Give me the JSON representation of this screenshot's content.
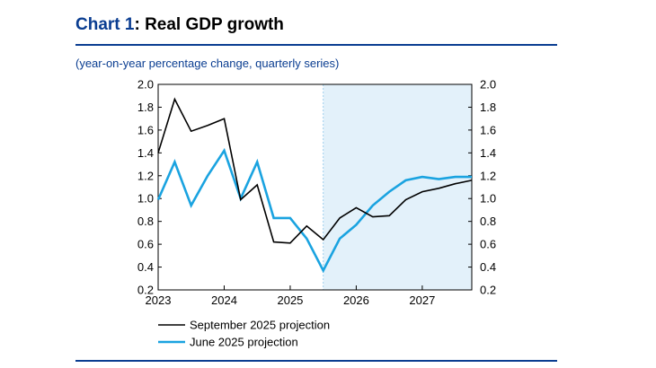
{
  "header": {
    "title_num": "Chart 1",
    "title_text": ": Real GDP growth",
    "subtitle": "(year-on-year percentage change, quarterly series)"
  },
  "colors": {
    "september": "#000000",
    "june": "#1aa3e0",
    "projection_shade": "#e3f1fa",
    "accent": "#0a3d91"
  },
  "chart_data": {
    "type": "line",
    "title": "Real GDP growth",
    "subtitle": "(year-on-year percentage change, quarterly series)",
    "xlabel": "",
    "ylabel": "",
    "x_ticks": [
      "2023",
      "2024",
      "2025",
      "2026",
      "2027"
    ],
    "ylim": [
      0.2,
      2.0
    ],
    "y_ticks": [
      "0.2",
      "0.4",
      "0.6",
      "0.8",
      "1.0",
      "1.2",
      "1.4",
      "1.6",
      "1.8",
      "2.0"
    ],
    "shaded_projection_start": "2025Q3",
    "x": [
      "2023Q1",
      "2023Q2",
      "2023Q3",
      "2023Q4",
      "2024Q1",
      "2024Q2",
      "2024Q3",
      "2024Q4",
      "2025Q1",
      "2025Q2",
      "2025Q3",
      "2025Q4",
      "2026Q1",
      "2026Q2",
      "2026Q3",
      "2026Q4",
      "2027Q1",
      "2027Q2",
      "2027Q3",
      "2027Q4"
    ],
    "series": [
      {
        "name": "September 2025 projection",
        "values": [
          1.4,
          1.87,
          1.59,
          1.64,
          1.7,
          0.99,
          1.12,
          0.62,
          0.61,
          0.76,
          0.64,
          0.83,
          0.92,
          0.84,
          0.85,
          0.99,
          1.06,
          1.09,
          1.13,
          1.16
        ]
      },
      {
        "name": "June 2025 projection",
        "values": [
          0.99,
          1.32,
          0.94,
          1.2,
          1.42,
          1.0,
          1.32,
          0.83,
          0.83,
          0.65,
          0.37,
          0.65,
          0.77,
          0.94,
          1.06,
          1.16,
          1.19,
          1.17,
          1.19,
          1.19
        ]
      }
    ],
    "legend": [
      "September 2025 projection",
      "June 2025 projection"
    ],
    "legend_position": "bottom-left"
  }
}
